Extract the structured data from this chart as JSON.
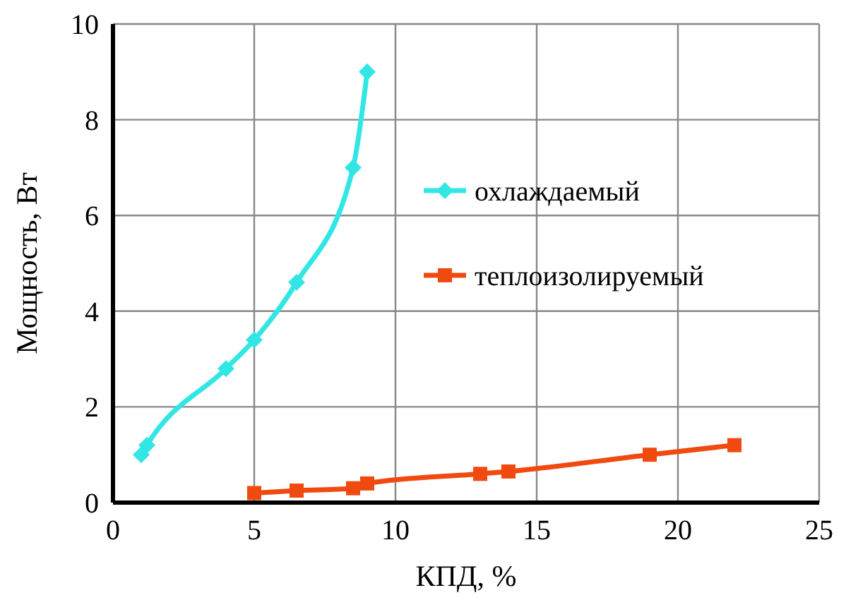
{
  "chart_data": {
    "type": "line",
    "xlabel": "КПД, %",
    "ylabel": "Мощность, Вт",
    "series": [
      {
        "name": "охлаждаемый",
        "color": "#33e6e6",
        "marker": "diamond",
        "x": [
          1,
          1.2,
          4,
          5,
          6.5,
          8.5,
          9
        ],
        "values": [
          1.0,
          1.2,
          2.8,
          3.4,
          4.6,
          7.0,
          9.0
        ]
      },
      {
        "name": "теплоизолируемый",
        "color": "#f04a10",
        "marker": "square",
        "x": [
          5,
          6.5,
          8.5,
          9,
          13,
          14,
          19,
          22
        ],
        "values": [
          0.2,
          0.25,
          0.3,
          0.4,
          0.6,
          0.65,
          1.0,
          1.2
        ]
      }
    ],
    "xlim": [
      0,
      25
    ],
    "xticks": [
      0,
      5,
      10,
      15,
      20,
      25
    ],
    "ylim": [
      0,
      10
    ],
    "yticks": [
      0,
      2,
      4,
      6,
      8,
      10
    ],
    "grid": true,
    "legend": "right"
  }
}
